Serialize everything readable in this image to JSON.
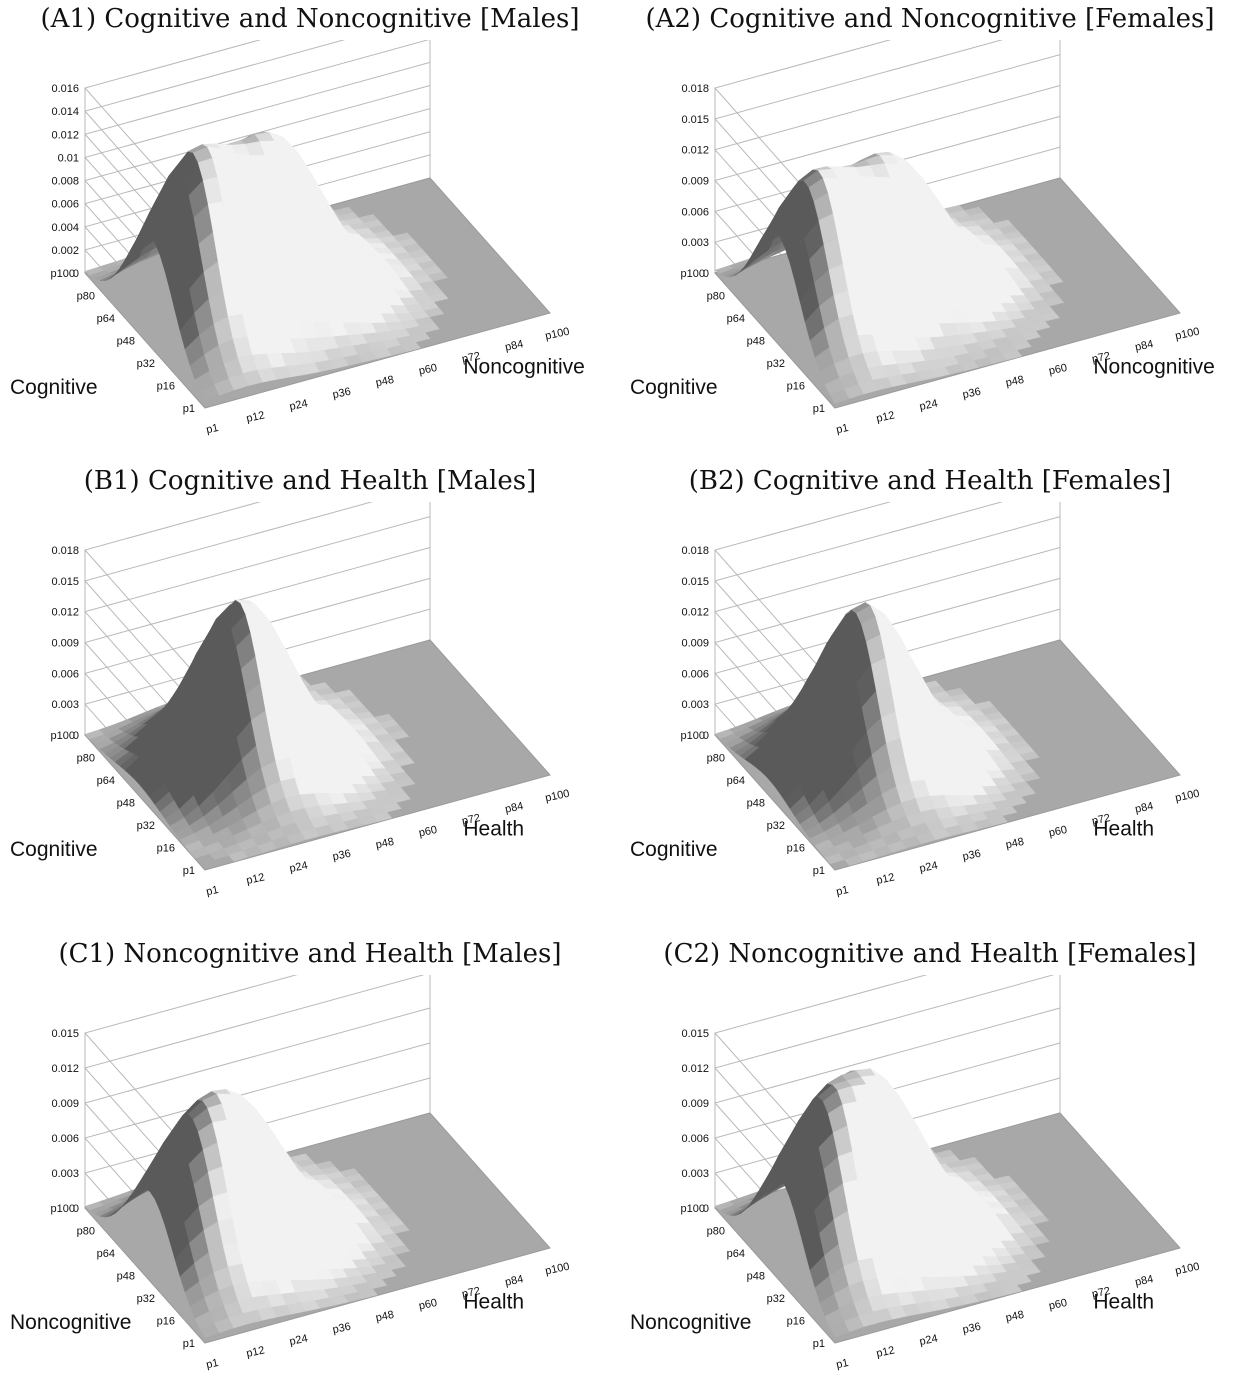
{
  "figure": {
    "panels": [
      {
        "id": "A1",
        "title": "(A1) Cognitive and Noncognitive [Males]",
        "x_axis_name": "Noncognitive",
        "y_axis_name": "Cognitive",
        "z_ticks": [
          "0",
          "0.002",
          "0.004",
          "0.006",
          "0.008",
          "0.01",
          "0.012",
          "0.014",
          "0.016"
        ],
        "x_ticks": [
          "p1",
          "p12",
          "p24",
          "p36",
          "p48",
          "p60",
          "p72",
          "p84",
          "p100"
        ],
        "y_ticks": [
          "p1",
          "p16",
          "p32",
          "p48",
          "p64",
          "p80",
          "p100"
        ]
      },
      {
        "id": "A2",
        "title": "(A2) Cognitive and Noncognitive [Females]",
        "x_axis_name": "Noncognitive",
        "y_axis_name": "Cognitive",
        "z_ticks": [
          "0",
          "0.003",
          "0.006",
          "0.009",
          "0.012",
          "0.015",
          "0.018"
        ],
        "x_ticks": [
          "p1",
          "p12",
          "p24",
          "p36",
          "p48",
          "p60",
          "p72",
          "p84",
          "p100"
        ],
        "y_ticks": [
          "p1",
          "p16",
          "p32",
          "p48",
          "p64",
          "p80",
          "p100"
        ]
      },
      {
        "id": "B1",
        "title": "(B1) Cognitive and Health [Males]",
        "x_axis_name": "Health",
        "y_axis_name": "Cognitive",
        "z_ticks": [
          "0",
          "0.003",
          "0.006",
          "0.009",
          "0.012",
          "0.015",
          "0.018"
        ],
        "x_ticks": [
          "p1",
          "p12",
          "p24",
          "p36",
          "p48",
          "p60",
          "p72",
          "p84",
          "p100"
        ],
        "y_ticks": [
          "p1",
          "p16",
          "p32",
          "p48",
          "p64",
          "p80",
          "p100"
        ]
      },
      {
        "id": "B2",
        "title": "(B2) Cognitive and Health [Females]",
        "x_axis_name": "Health",
        "y_axis_name": "Cognitive",
        "z_ticks": [
          "0",
          "0.003",
          "0.006",
          "0.009",
          "0.012",
          "0.015",
          "0.018"
        ],
        "x_ticks": [
          "p1",
          "p12",
          "p24",
          "p36",
          "p48",
          "p60",
          "p72",
          "p84",
          "p100"
        ],
        "y_ticks": [
          "p1",
          "p16",
          "p32",
          "p48",
          "p64",
          "p80",
          "p100"
        ]
      },
      {
        "id": "C1",
        "title": "(C1) Noncognitive and Health [Males]",
        "x_axis_name": "Health",
        "y_axis_name": "Noncognitive",
        "z_ticks": [
          "0",
          "0.003",
          "0.006",
          "0.009",
          "0.012",
          "0.015"
        ],
        "x_ticks": [
          "p1",
          "p12",
          "p24",
          "p36",
          "p48",
          "p60",
          "p72",
          "p84",
          "p100"
        ],
        "y_ticks": [
          "p1",
          "p16",
          "p32",
          "p48",
          "p64",
          "p80",
          "p100"
        ]
      },
      {
        "id": "C2",
        "title": "(C2) Noncognitive and Health [Females]",
        "x_axis_name": "Health",
        "y_axis_name": "Noncognitive",
        "z_ticks": [
          "0",
          "0.003",
          "0.006",
          "0.009",
          "0.012",
          "0.015"
        ],
        "x_ticks": [
          "p1",
          "p12",
          "p24",
          "p36",
          "p48",
          "p60",
          "p72",
          "p84",
          "p100"
        ],
        "y_ticks": [
          "p1",
          "p16",
          "p32",
          "p48",
          "p64",
          "p80",
          "p100"
        ]
      }
    ]
  },
  "chart_data": [
    {
      "type": "surface",
      "title": "(A1) Cognitive and Noncognitive [Males]",
      "xlabel": "Noncognitive",
      "ylabel": "Cognitive",
      "zlim": [
        0,
        0.016
      ],
      "peaks": [
        {
          "x_percentile": 12,
          "y_percentile": 45,
          "z": 0.0145
        },
        {
          "x_percentile": 40,
          "y_percentile": 55,
          "z": 0.0128
        }
      ],
      "shading": [
        "#5a5a5a",
        "#f2f2f2"
      ],
      "floor_color": "#a8a8a8"
    },
    {
      "type": "surface",
      "title": "(A2) Cognitive and Noncognitive [Females]",
      "xlabel": "Noncognitive",
      "ylabel": "Cognitive",
      "zlim": [
        0,
        0.018
      ],
      "peaks": [
        {
          "x_percentile": 10,
          "y_percentile": 48,
          "z": 0.0142
        },
        {
          "x_percentile": 38,
          "y_percentile": 60,
          "z": 0.0122
        }
      ],
      "shading": [
        "#5a5a5a",
        "#f2f2f2"
      ],
      "floor_color": "#a8a8a8"
    },
    {
      "type": "surface",
      "title": "(B1) Cognitive and Health [Males]",
      "xlabel": "Health",
      "ylabel": "Cognitive",
      "zlim": [
        0,
        0.018
      ],
      "peaks": [
        {
          "x_percentile": 30,
          "y_percentile": 55,
          "z": 0.0162
        }
      ],
      "shading": [
        "#5a5a5a",
        "#f2f2f2"
      ],
      "floor_color": "#a8a8a8"
    },
    {
      "type": "surface",
      "title": "(B2) Cognitive and Health [Females]",
      "xlabel": "Health",
      "ylabel": "Cognitive",
      "zlim": [
        0,
        0.018
      ],
      "peaks": [
        {
          "x_percentile": 28,
          "y_percentile": 55,
          "z": 0.016
        }
      ],
      "shading": [
        "#5a5a5a",
        "#f2f2f2"
      ],
      "floor_color": "#a8a8a8"
    },
    {
      "type": "surface",
      "title": "(C1) Noncognitive and Health [Males]",
      "xlabel": "Health",
      "ylabel": "Noncognitive",
      "zlim": [
        0,
        0.015
      ],
      "peaks": [
        {
          "x_percentile": 10,
          "y_percentile": 45,
          "z": 0.0095
        },
        {
          "x_percentile": 30,
          "y_percentile": 55,
          "z": 0.0098
        }
      ],
      "shading": [
        "#5a5a5a",
        "#f2f2f2"
      ],
      "floor_color": "#a8a8a8"
    },
    {
      "type": "surface",
      "title": "(C2) Noncognitive and Health [Females]",
      "xlabel": "Health",
      "ylabel": "Noncognitive",
      "zlim": [
        0,
        0.015
      ],
      "peaks": [
        {
          "x_percentile": 10,
          "y_percentile": 45,
          "z": 0.0112
        },
        {
          "x_percentile": 32,
          "y_percentile": 55,
          "z": 0.0118
        }
      ],
      "shading": [
        "#5a5a5a",
        "#f2f2f2"
      ],
      "floor_color": "#a8a8a8"
    }
  ]
}
